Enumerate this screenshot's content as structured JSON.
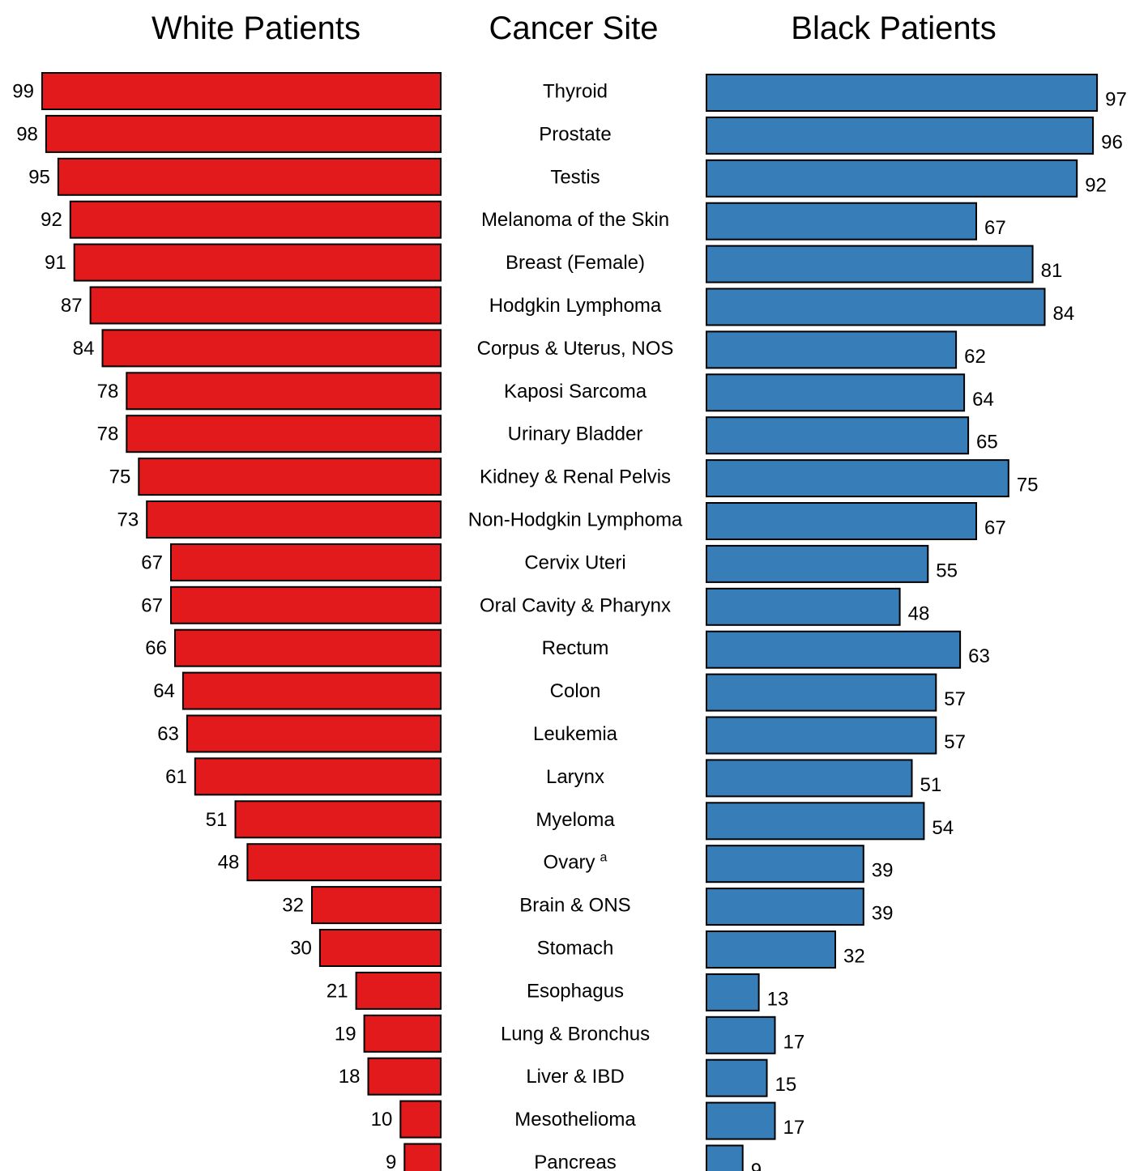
{
  "headings": {
    "left": "White Patients",
    "center": "Cancer Site",
    "right": "Black Patients"
  },
  "colors": {
    "white_patients": "#e31a1c",
    "black_patients": "#377eb8",
    "bar_outline": "#000000"
  },
  "chart_data": {
    "type": "bar",
    "orientation": "horizontal-butterfly",
    "categories": [
      "Thyroid",
      "Prostate",
      "Testis",
      "Melanoma of the Skin",
      "Breast (Female)",
      "Hodgkin Lymphoma",
      "Corpus & Uterus, NOS",
      "Kaposi Sarcoma",
      "Urinary Bladder",
      "Kidney & Renal Pelvis",
      "Non-Hodgkin Lymphoma",
      "Cervix Uteri",
      "Oral Cavity & Pharynx",
      "Rectum",
      "Colon",
      "Leukemia",
      "Larynx",
      "Myeloma",
      "Ovary",
      "Brain & ONS",
      "Stomach",
      "Esophagus",
      "Lung & Bronchus",
      "Liver & IBD",
      "Mesothelioma",
      "Pancreas"
    ],
    "category_superscripts": {
      "Ovary": "a"
    },
    "series": [
      {
        "name": "White Patients",
        "values": [
          99,
          98,
          95,
          92,
          91,
          87,
          84,
          78,
          78,
          75,
          73,
          67,
          67,
          66,
          64,
          63,
          61,
          51,
          48,
          32,
          30,
          21,
          19,
          18,
          10,
          9
        ]
      },
      {
        "name": "Black Patients",
        "values": [
          97,
          96,
          92,
          67,
          81,
          84,
          62,
          64,
          65,
          75,
          67,
          55,
          48,
          63,
          57,
          57,
          51,
          54,
          39,
          39,
          32,
          13,
          17,
          15,
          17,
          9
        ]
      }
    ],
    "xlim": [
      0,
      100
    ],
    "grid": false,
    "legend": "none"
  }
}
